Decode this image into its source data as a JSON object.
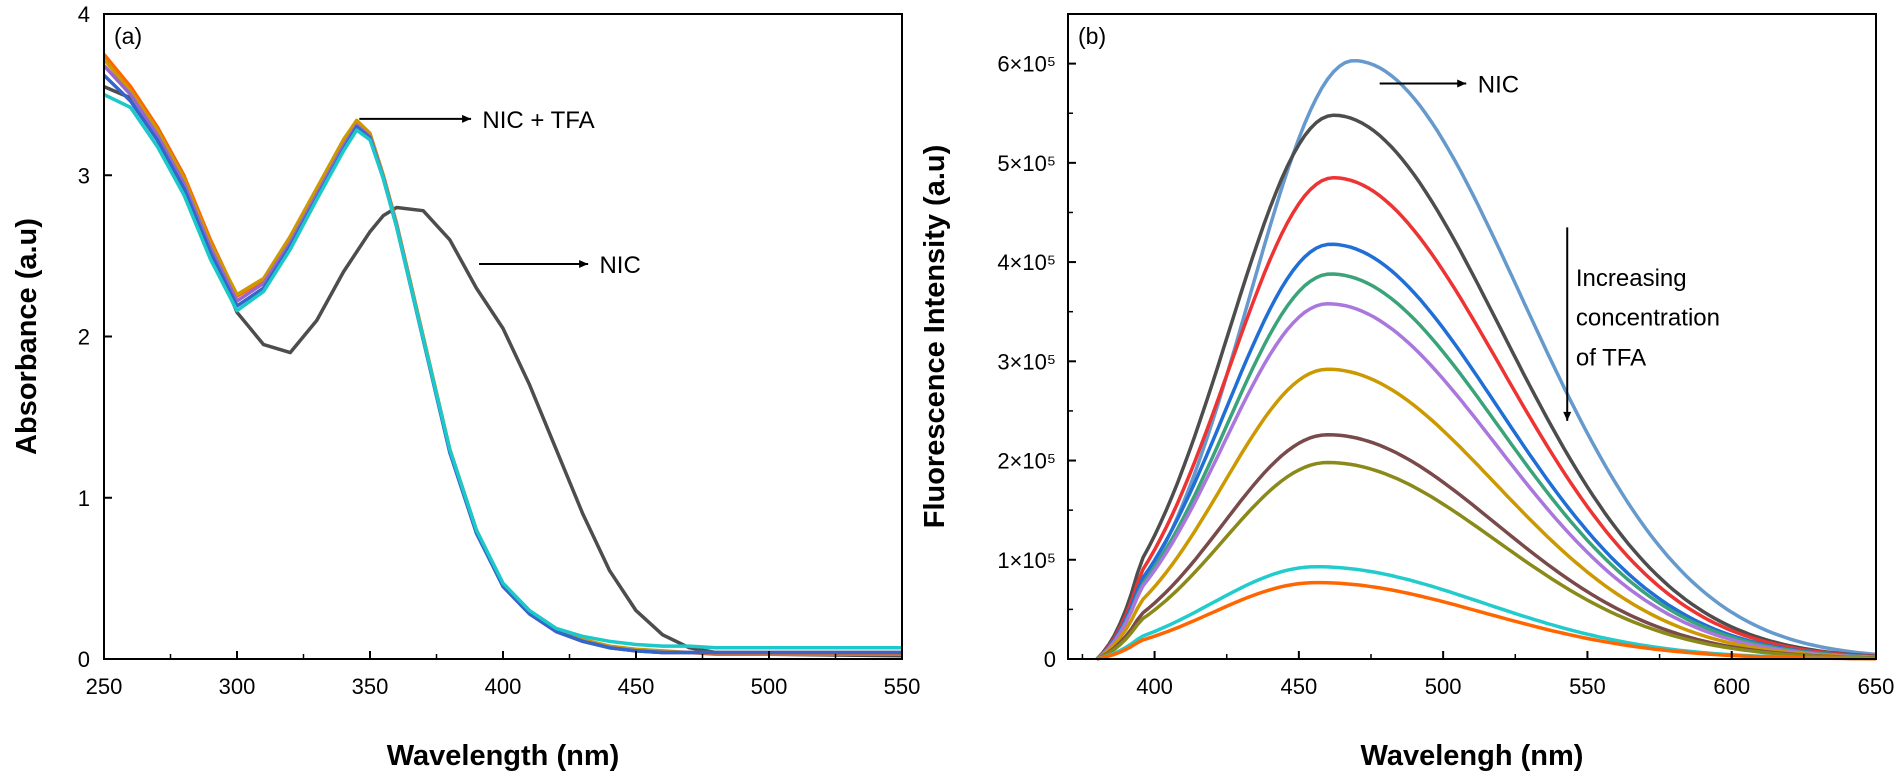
{
  "chart_data": [
    {
      "type": "line",
      "panel_label": "(a)",
      "xlabel": "Wavelength (nm)",
      "ylabel": "Absorbance (a.u)",
      "xlim": [
        250,
        550
      ],
      "ylim": [
        0,
        4
      ],
      "xticks": [
        "250",
        "300",
        "350",
        "400",
        "450",
        "500",
        "550"
      ],
      "yticks": [
        "0",
        "1",
        "2",
        "3",
        "4"
      ],
      "annotations": [
        {
          "text": "NIC + TFA",
          "arrow_from": [
            346,
            3.35
          ],
          "arrow_to": [
            388,
            3.35
          ],
          "text_at": [
            390,
            3.35
          ]
        },
        {
          "text": "NIC",
          "arrow_from": [
            391,
            2.45
          ],
          "arrow_to": [
            432,
            2.45
          ],
          "text_at": [
            434,
            2.45
          ]
        }
      ],
      "series": [
        {
          "name": "NIC",
          "color": "#4d4d4d",
          "x": [
            250,
            260,
            270,
            280,
            290,
            300,
            310,
            320,
            330,
            340,
            350,
            355,
            360,
            370,
            380,
            390,
            400,
            410,
            420,
            430,
            440,
            450,
            460,
            470,
            480,
            490,
            500,
            550
          ],
          "y": [
            3.55,
            3.48,
            3.3,
            3.0,
            2.55,
            2.15,
            1.95,
            1.9,
            2.1,
            2.4,
            2.65,
            2.75,
            2.8,
            2.78,
            2.6,
            2.3,
            2.05,
            1.7,
            1.3,
            0.9,
            0.55,
            0.3,
            0.15,
            0.07,
            0.04,
            0.03,
            0.03,
            0.02
          ]
        },
        {
          "name": "NIC + TFA (orange)",
          "color": "#ff6600",
          "x": [
            250,
            260,
            270,
            280,
            290,
            300,
            310,
            320,
            330,
            340,
            345,
            350,
            355,
            360,
            370,
            380,
            390,
            400,
            410,
            420,
            430,
            440,
            450,
            460,
            470,
            480,
            500,
            550
          ],
          "y": [
            3.75,
            3.55,
            3.3,
            3.0,
            2.6,
            2.25,
            2.35,
            2.6,
            2.9,
            3.2,
            3.33,
            3.25,
            3.0,
            2.7,
            2.0,
            1.3,
            0.8,
            0.45,
            0.28,
            0.17,
            0.11,
            0.07,
            0.05,
            0.04,
            0.04,
            0.03,
            0.03,
            0.03
          ]
        },
        {
          "name": "NIC + TFA (gold)",
          "color": "#cc9900",
          "x": [
            250,
            260,
            270,
            280,
            290,
            300,
            310,
            320,
            330,
            340,
            345,
            350,
            355,
            360,
            370,
            380,
            390,
            400,
            410,
            420,
            430,
            440,
            450,
            460,
            470,
            480,
            500,
            550
          ],
          "y": [
            3.72,
            3.52,
            3.28,
            2.98,
            2.58,
            2.26,
            2.36,
            2.62,
            2.92,
            3.22,
            3.34,
            3.26,
            3.0,
            2.7,
            2.0,
            1.3,
            0.8,
            0.46,
            0.29,
            0.18,
            0.12,
            0.08,
            0.06,
            0.05,
            0.04,
            0.04,
            0.04,
            0.04
          ]
        },
        {
          "name": "NIC + TFA (purple)",
          "color": "#9966cc",
          "x": [
            250,
            260,
            270,
            280,
            290,
            300,
            310,
            320,
            330,
            340,
            345,
            350,
            355,
            360,
            370,
            380,
            390,
            400,
            410,
            420,
            430,
            440,
            450,
            460,
            470,
            480,
            500,
            550
          ],
          "y": [
            3.68,
            3.5,
            3.25,
            2.95,
            2.55,
            2.22,
            2.33,
            2.58,
            2.88,
            3.18,
            3.31,
            3.24,
            2.99,
            2.69,
            1.99,
            1.29,
            0.79,
            0.45,
            0.28,
            0.17,
            0.11,
            0.07,
            0.05,
            0.04,
            0.04,
            0.04,
            0.04,
            0.04
          ]
        },
        {
          "name": "NIC + TFA (blue)",
          "color": "#3366cc",
          "x": [
            250,
            260,
            270,
            280,
            290,
            300,
            310,
            320,
            330,
            340,
            345,
            350,
            355,
            360,
            370,
            380,
            390,
            400,
            410,
            420,
            430,
            440,
            450,
            460,
            470,
            480,
            500,
            550
          ],
          "y": [
            3.62,
            3.46,
            3.22,
            2.92,
            2.52,
            2.19,
            2.3,
            2.56,
            2.86,
            3.16,
            3.3,
            3.23,
            2.98,
            2.68,
            1.98,
            1.28,
            0.78,
            0.45,
            0.28,
            0.17,
            0.11,
            0.07,
            0.05,
            0.04,
            0.04,
            0.04,
            0.04,
            0.04
          ]
        },
        {
          "name": "NIC + TFA (cyan)",
          "color": "#1cc8c8",
          "x": [
            250,
            260,
            270,
            280,
            290,
            300,
            310,
            320,
            330,
            340,
            345,
            350,
            355,
            360,
            370,
            380,
            390,
            400,
            410,
            420,
            430,
            440,
            450,
            460,
            470,
            480,
            500,
            550
          ],
          "y": [
            3.5,
            3.42,
            3.18,
            2.88,
            2.48,
            2.16,
            2.28,
            2.54,
            2.85,
            3.15,
            3.28,
            3.22,
            2.98,
            2.68,
            1.99,
            1.3,
            0.8,
            0.47,
            0.3,
            0.19,
            0.14,
            0.11,
            0.09,
            0.08,
            0.08,
            0.07,
            0.07,
            0.07
          ]
        }
      ]
    },
    {
      "type": "line",
      "panel_label": "(b)",
      "xlabel": "Wavelengh (nm)",
      "ylabel": "Fluorescence Intensity (a.u)",
      "xlim": [
        370,
        650
      ],
      "ylim": [
        0,
        650000
      ],
      "xticks": [
        "400",
        "450",
        "500",
        "550",
        "600",
        "650"
      ],
      "yticks": [
        "0",
        "1×10⁵",
        "2×10⁵",
        "3×10⁵",
        "4×10⁵",
        "5×10⁵",
        "6×10⁵"
      ],
      "annotations": [
        {
          "text": "NIC",
          "arrow_from": [
            478,
            580000
          ],
          "arrow_to": [
            508,
            580000
          ],
          "text_at": [
            512,
            580000
          ]
        },
        {
          "text": "Increasing",
          "text_at": [
            546,
            385000
          ]
        },
        {
          "text": "concentration",
          "text_at": [
            546,
            345000
          ]
        },
        {
          "text": "of TFA",
          "text_at": [
            546,
            305000
          ]
        },
        {
          "text": "",
          "arrow_from": [
            543,
            435000
          ],
          "arrow_to": [
            543,
            240000
          ]
        }
      ],
      "series": [
        {
          "name": "NIC",
          "color": "#6699cc",
          "peak_wavelength": 469,
          "peak": 603000
        },
        {
          "name": "TFA 1",
          "color": "#4d4d4d",
          "peak_wavelength": 462,
          "peak": 548000
        },
        {
          "name": "TFA 2",
          "color": "#ee3333",
          "peak_wavelength": 462,
          "peak": 485000
        },
        {
          "name": "TFA 3",
          "color": "#1f6fd6",
          "peak_wavelength": 461,
          "peak": 418000
        },
        {
          "name": "TFA 4",
          "color": "#3aa37a",
          "peak_wavelength": 461,
          "peak": 388000
        },
        {
          "name": "TFA 5",
          "color": "#aa77dd",
          "peak_wavelength": 460,
          "peak": 358000
        },
        {
          "name": "TFA 6",
          "color": "#cc9900",
          "peak_wavelength": 460,
          "peak": 292000
        },
        {
          "name": "TFA 7",
          "color": "#7a4a4a",
          "peak_wavelength": 460,
          "peak": 226000
        },
        {
          "name": "TFA 8",
          "color": "#8a8a1a",
          "peak_wavelength": 460,
          "peak": 198000
        },
        {
          "name": "TFA 9",
          "color": "#22cccc",
          "peak_wavelength": 456,
          "peak": 93000
        },
        {
          "name": "TFA 10",
          "color": "#ff6600",
          "peak_wavelength": 456,
          "peak": 77000
        }
      ]
    }
  ]
}
